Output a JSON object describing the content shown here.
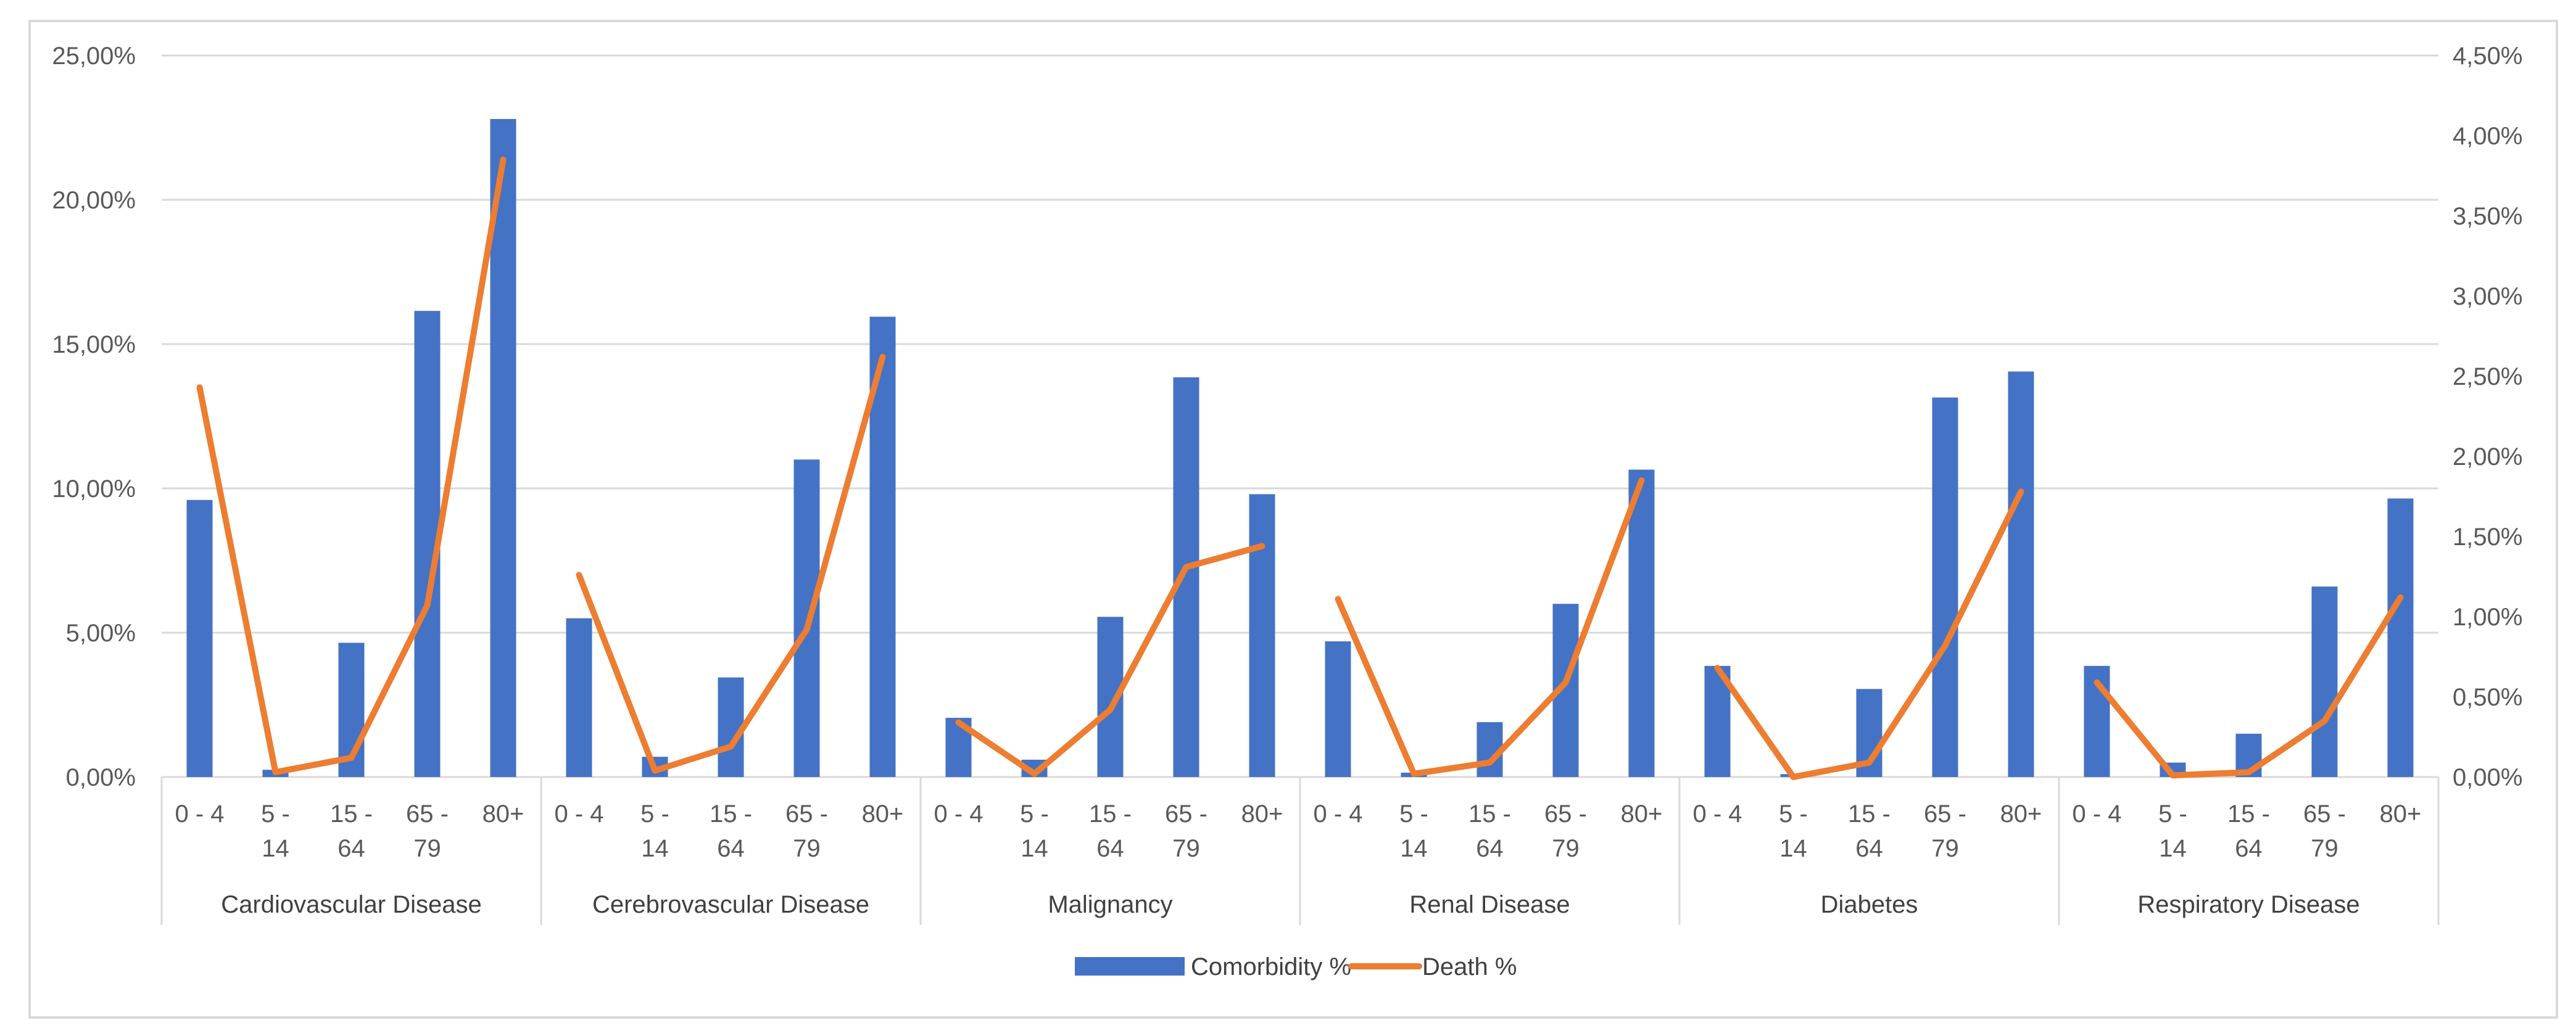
{
  "chart_data": {
    "type": "bar+line",
    "title": "",
    "groups": [
      "Cardiovascular Disease",
      "Cerebrovascular Disease",
      "Malignancy",
      "Renal Disease",
      "Diabetes",
      "Respiratory Disease"
    ],
    "age_bands": [
      [
        "0 - 4"
      ],
      [
        "5 -",
        "14"
      ],
      [
        "15 -",
        "64"
      ],
      [
        "65 -",
        "79"
      ],
      [
        "80+"
      ]
    ],
    "y_left": {
      "ticks": [
        "0,00%",
        "5,00%",
        "10,00%",
        "15,00%",
        "20,00%",
        "25,00%"
      ],
      "min": 0,
      "max": 25
    },
    "y_right": {
      "ticks": [
        "0,00%",
        "0,50%",
        "1,00%",
        "1,50%",
        "2,00%",
        "2,50%",
        "3,00%",
        "3,50%",
        "4,00%",
        "4,50%"
      ],
      "min": 0,
      "max": 4.5
    },
    "series": [
      {
        "name": "Comorbidity %",
        "kind": "bar",
        "axis": "left",
        "color": "#4472C4",
        "values": [
          [
            9.6,
            0.25,
            4.65,
            16.15,
            22.8
          ],
          [
            5.5,
            0.7,
            3.45,
            11.0,
            15.95
          ],
          [
            2.05,
            0.6,
            5.55,
            13.85,
            9.8
          ],
          [
            4.7,
            0.15,
            1.9,
            6.0,
            10.65
          ],
          [
            3.85,
            0.1,
            3.05,
            13.15,
            14.05
          ],
          [
            3.85,
            0.5,
            1.5,
            6.6,
            9.65
          ]
        ]
      },
      {
        "name": "Death %",
        "kind": "line",
        "axis": "right",
        "color": "#ED7D31",
        "values": [
          [
            2.43,
            0.03,
            0.12,
            1.07,
            3.85
          ],
          [
            1.26,
            0.04,
            0.19,
            0.92,
            2.62
          ],
          [
            0.34,
            0.02,
            0.42,
            1.31,
            1.44
          ],
          [
            1.11,
            0.02,
            0.09,
            0.59,
            1.85
          ],
          [
            0.68,
            0.0,
            0.09,
            0.82,
            1.78
          ],
          [
            0.59,
            0.01,
            0.03,
            0.35,
            1.12
          ]
        ]
      }
    ],
    "legend": {
      "position": "bottom",
      "entries": [
        "Comorbidity %",
        "Death %"
      ]
    }
  }
}
